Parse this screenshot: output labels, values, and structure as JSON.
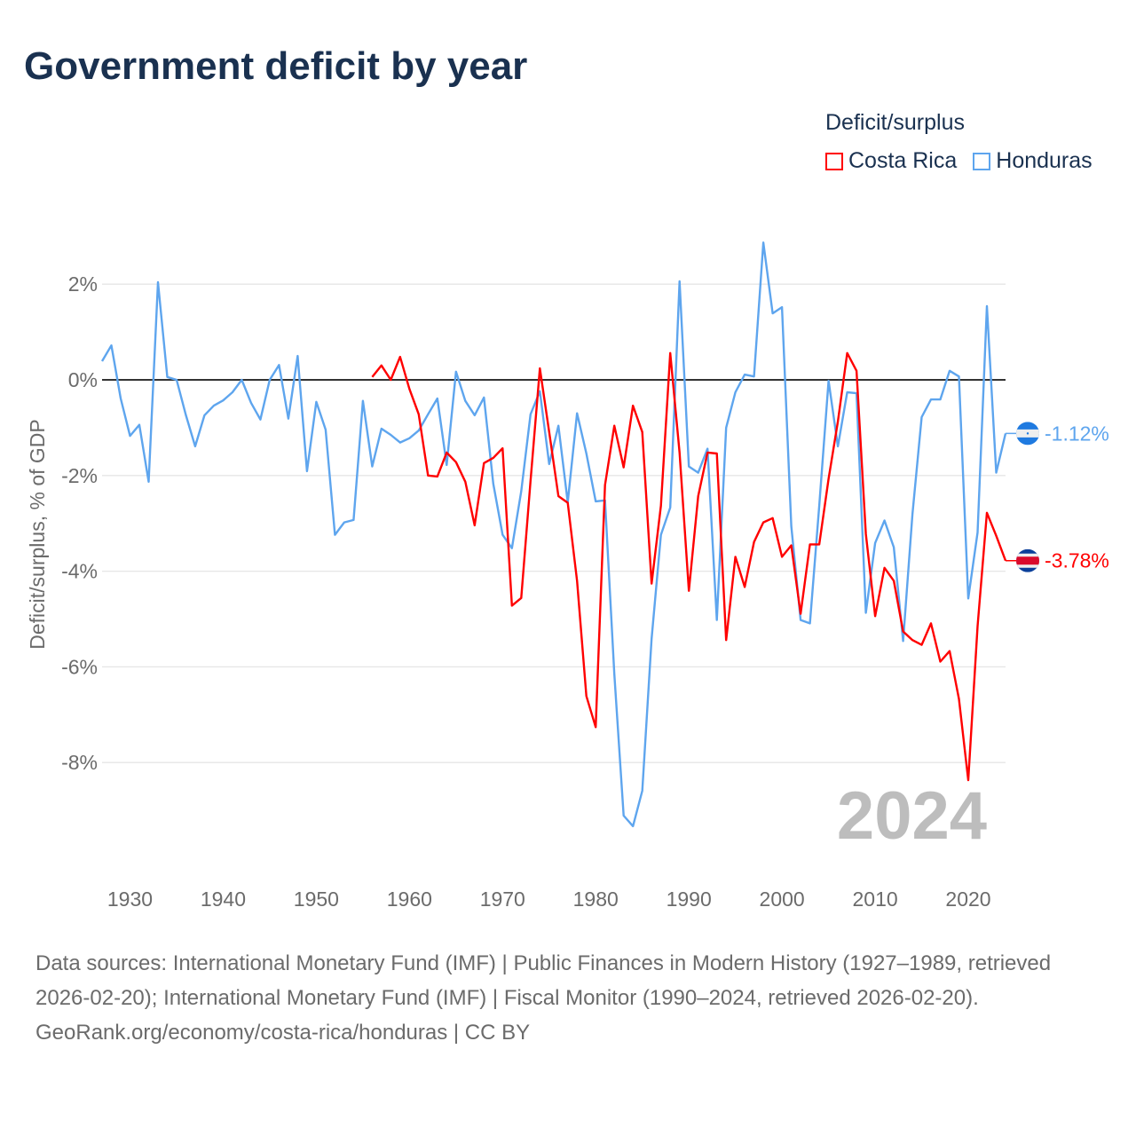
{
  "title": "Government deficit by year",
  "legend": {
    "title": "Deficit/surplus",
    "items": [
      {
        "label": "Costa Rica",
        "color": "#ff0000"
      },
      {
        "label": "Honduras",
        "color": "#5ea5ee"
      }
    ]
  },
  "footer": {
    "sources": "Data sources: International Monetary Fund (IMF) | Public Finances in Modern History (1927–1989, retrieved 2026-02-20); International Monetary Fund (IMF) | Fiscal Monitor (1990–2024, retrieved 2026-02-20).",
    "credit": "GeoRank.org/economy/costa-rica/honduras | CC BY"
  },
  "chart_data": {
    "type": "line",
    "title": "Government deficit by year",
    "ylabel": "Deficit/surplus, % of GDP",
    "xlabel": "",
    "year_watermark": "2024",
    "xlim": [
      1927,
      2024
    ],
    "ylim": [
      -10,
      3
    ],
    "x_ticks": [
      "1930",
      "1940",
      "1950",
      "1960",
      "1970",
      "1980",
      "1990",
      "2000",
      "2010",
      "2020"
    ],
    "y_ticks": [
      {
        "v": 2,
        "label": "2%"
      },
      {
        "v": 0,
        "label": "0%"
      },
      {
        "v": -2,
        "label": "-2%"
      },
      {
        "v": -4,
        "label": "-4%"
      },
      {
        "v": -6,
        "label": "-6%"
      },
      {
        "v": -8,
        "label": "-8%"
      }
    ],
    "series": [
      {
        "name": "Honduras",
        "color": "#5ea5ee",
        "start_year": 1927,
        "end_label": "-1.12%",
        "flag": "honduras",
        "values": [
          0.39,
          0.72,
          -0.39,
          -1.17,
          -0.94,
          -2.13,
          2.04,
          0.06,
          0,
          -0.74,
          -1.39,
          -0.74,
          -0.54,
          -0.43,
          -0.26,
          0,
          -0.48,
          -0.83,
          0,
          0.31,
          -0.81,
          0.5,
          -1.91,
          -0.46,
          -1.04,
          -3.24,
          -2.98,
          -2.93,
          -0.44,
          -1.81,
          -1.02,
          -1.15,
          -1.31,
          -1.22,
          -1.06,
          -0.72,
          -0.39,
          -1.78,
          0.17,
          -0.44,
          -0.74,
          -0.37,
          -2.17,
          -3.24,
          -3.52,
          -2.33,
          -0.72,
          -0.24,
          -1.76,
          -0.96,
          -2.56,
          -0.7,
          -1.54,
          -2.54,
          -2.52,
          -6.15,
          -9.11,
          -9.33,
          -8.59,
          -5.41,
          -3.24,
          -2.67,
          2.06,
          -1.81,
          -1.94,
          -1.44,
          -5.02,
          -1.0,
          -0.26,
          0.11,
          0.07,
          2.87,
          1.39,
          1.52,
          -3.06,
          -5.02,
          -5.09,
          -2.63,
          -0.02,
          -1.39,
          -0.26,
          -0.28,
          -4.87,
          -3.41,
          -2.94,
          -3.5,
          -5.46,
          -2.81,
          -0.78,
          -0.41,
          -0.41,
          0.19,
          0.07,
          -4.57,
          -3.19,
          1.54,
          -1.94,
          -1.12
        ]
      },
      {
        "name": "Costa Rica",
        "color": "#ff0000",
        "start_year": 1956,
        "end_label": "-3.78%",
        "flag": "costa-rica",
        "values": [
          0.06,
          0.3,
          0,
          0.48,
          -0.19,
          -0.72,
          -2.0,
          -2.02,
          -1.52,
          -1.72,
          -2.13,
          -3.04,
          -1.74,
          -1.63,
          -1.43,
          -4.72,
          -4.56,
          -2.11,
          0.24,
          -1.09,
          -2.43,
          -2.57,
          -4.2,
          -6.61,
          -7.26,
          -2.2,
          -0.96,
          -1.83,
          -0.54,
          -1.09,
          -4.26,
          -2.63,
          0.56,
          -1.52,
          -4.41,
          -2.43,
          -1.52,
          -1.54,
          -5.44,
          -3.7,
          -4.33,
          -3.39,
          -2.98,
          -2.89,
          -3.7,
          -3.46,
          -4.89,
          -3.44,
          -3.44,
          -2.07,
          -0.87,
          0.56,
          0.19,
          -3.22,
          -4.94,
          -3.93,
          -4.2,
          -5.26,
          -5.44,
          -5.54,
          -5.09,
          -5.89,
          -5.67,
          -6.67,
          -8.37,
          -5.15,
          -2.78,
          -3.26,
          -3.78
        ]
      }
    ]
  }
}
